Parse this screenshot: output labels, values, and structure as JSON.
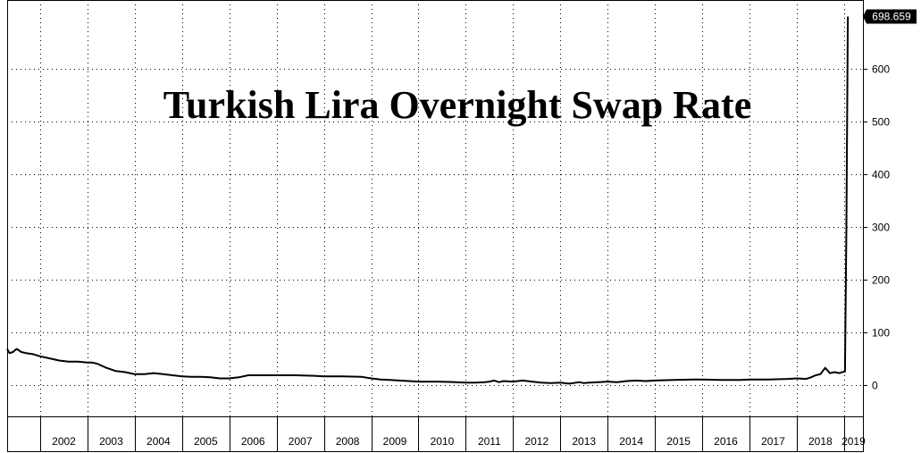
{
  "chart_data": {
    "type": "line",
    "title": "Turkish Lira Overnight Swap Rate",
    "xlabel": "",
    "ylabel": "",
    "x_tick_labels": [
      "2002",
      "2003",
      "2004",
      "2005",
      "2006",
      "2007",
      "2008",
      "2009",
      "2010",
      "2011",
      "2012",
      "2013",
      "2014",
      "2015",
      "2016",
      "2017",
      "2018",
      "2019"
    ],
    "y_ticks": [
      0,
      100,
      200,
      300,
      400,
      500,
      600
    ],
    "ylim": [
      -60,
      730
    ],
    "xlim": [
      2001.3,
      2019.4
    ],
    "grid": true,
    "last_value_label": "698.659",
    "series": [
      {
        "x": [
          2001.3,
          2001.35,
          2001.42,
          2001.5,
          2001.6,
          2001.7,
          2001.85,
          2002.0,
          2002.2,
          2002.4,
          2002.6,
          2002.8,
          2003.0,
          2003.1,
          2003.2,
          2003.4,
          2003.6,
          2003.8,
          2004.0,
          2004.2,
          2004.4,
          2004.6,
          2004.8,
          2005.0,
          2005.2,
          2005.4,
          2005.6,
          2005.8,
          2006.0,
          2006.2,
          2006.4,
          2006.6,
          2006.8,
          2007.0,
          2007.4,
          2007.8,
          2008.0,
          2008.4,
          2008.8,
          2009.0,
          2009.2,
          2009.4,
          2009.6,
          2009.8,
          2010.0,
          2010.4,
          2010.8,
          2011.0,
          2011.2,
          2011.4,
          2011.5,
          2011.6,
          2011.7,
          2011.8,
          2012.0,
          2012.2,
          2012.4,
          2012.6,
          2012.8,
          2013.0,
          2013.2,
          2013.4,
          2013.5,
          2013.6,
          2013.8,
          2014.0,
          2014.2,
          2014.4,
          2014.6,
          2014.8,
          2015.0,
          2015.4,
          2015.8,
          2016.0,
          2016.4,
          2016.8,
          2017.0,
          2017.4,
          2017.8,
          2018.0,
          2018.2,
          2018.3,
          2018.4,
          2018.5,
          2018.6,
          2018.7,
          2018.8,
          2018.9,
          2019.0,
          2019.02,
          2019.05,
          2019.08
        ],
        "values": [
          68,
          60,
          62,
          68,
          62,
          60,
          58,
          54,
          50,
          46,
          44,
          44,
          42,
          42,
          40,
          32,
          26,
          24,
          20,
          20,
          22,
          20,
          18,
          16,
          15,
          15,
          14,
          12,
          12,
          14,
          18,
          18,
          18,
          18,
          18,
          17,
          16,
          16,
          15,
          12,
          10,
          9,
          8,
          7,
          6,
          6,
          5,
          4,
          4,
          5,
          6,
          8,
          5,
          7,
          6,
          8,
          6,
          4,
          3,
          4,
          2,
          5,
          3,
          4,
          5,
          6,
          5,
          7,
          8,
          7,
          8,
          9,
          10,
          10,
          9,
          9,
          10,
          10,
          11,
          12,
          11,
          14,
          18,
          20,
          32,
          22,
          24,
          22,
          25,
          25,
          300,
          698.659
        ]
      }
    ]
  }
}
